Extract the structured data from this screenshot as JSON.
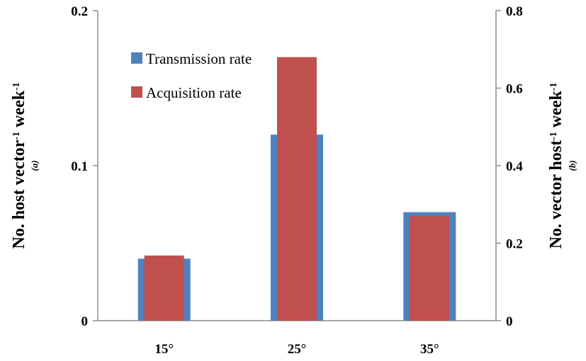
{
  "chart_data": {
    "type": "bar",
    "categories": [
      "15°",
      "25°",
      "35°"
    ],
    "series": [
      {
        "name": "Transmission rate",
        "axis": "left",
        "color": "#4f81bd",
        "values": [
          0.04,
          0.12,
          0.07
        ]
      },
      {
        "name": "Acquisition rate",
        "axis": "right",
        "color": "#c0504d",
        "values": [
          0.168,
          0.68,
          0.27
        ]
      }
    ],
    "left_axis": {
      "label_main": "No. host  vector",
      "label_sup1": "-1",
      "label_mid": " week",
      "label_sup2": "-1",
      "label_note": "(a)",
      "ylim": [
        0,
        0.2
      ],
      "ticks": [
        "0",
        "0.1",
        "0.2"
      ]
    },
    "right_axis": {
      "label_main": "No. vector host",
      "label_sup1": "-1",
      "label_mid": " week",
      "label_sup2": "-1",
      "label_note": "(b)",
      "ylim": [
        0,
        0.8
      ],
      "ticks": [
        "0",
        "0.2",
        "0.4",
        "0.6",
        "0.8"
      ]
    },
    "grid": false,
    "legend_position": "top-left"
  }
}
